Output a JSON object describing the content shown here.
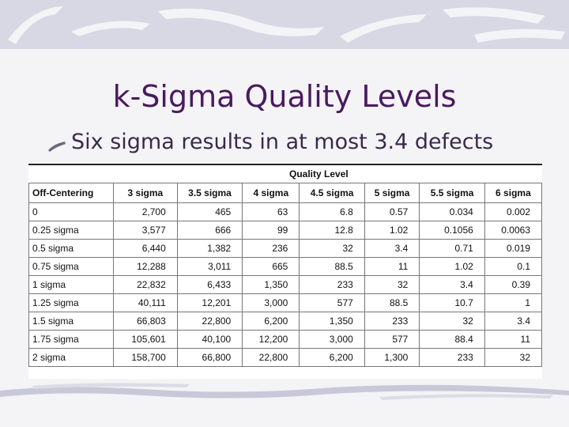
{
  "slide": {
    "title": "k-Sigma Quality Levels",
    "bullet": "Six sigma results in at most 3.4 defects"
  },
  "table": {
    "group_header": "Quality Level",
    "columns": [
      "Off-Centering",
      "3 sigma",
      "3.5 sigma",
      "4 sigma",
      "4.5 sigma",
      "5 sigma",
      "5.5 sigma",
      "6 sigma"
    ],
    "rows": [
      [
        "0",
        "2,700",
        "465",
        "63",
        "6.8",
        "0.57",
        "0.034",
        "0.002"
      ],
      [
        "0.25 sigma",
        "3,577",
        "666",
        "99",
        "12.8",
        "1.02",
        "0.1056",
        "0.0063"
      ],
      [
        "0.5 sigma",
        "6,440",
        "1,382",
        "236",
        "32",
        "3.4",
        "0.71",
        "0.019"
      ],
      [
        "0.75 sigma",
        "12,288",
        "3,011",
        "665",
        "88.5",
        "11",
        "1.02",
        "0.1"
      ],
      [
        "1 sigma",
        "22,832",
        "6,433",
        "1,350",
        "233",
        "32",
        "3.4",
        "0.39"
      ],
      [
        "1.25 sigma",
        "40,111",
        "12,201",
        "3,000",
        "577",
        "88.5",
        "10.7",
        "1"
      ],
      [
        "1.5 sigma",
        "66,803",
        "22,800",
        "6,200",
        "1,350",
        "233",
        "32",
        "3.4"
      ],
      [
        "1.75 sigma",
        "105,601",
        "40,100",
        "12,200",
        "3,000",
        "577",
        "88.4",
        "11"
      ],
      [
        "2 sigma",
        "158,700",
        "66,800",
        "22,800",
        "6,200",
        "1,300",
        "233",
        "32"
      ]
    ]
  }
}
